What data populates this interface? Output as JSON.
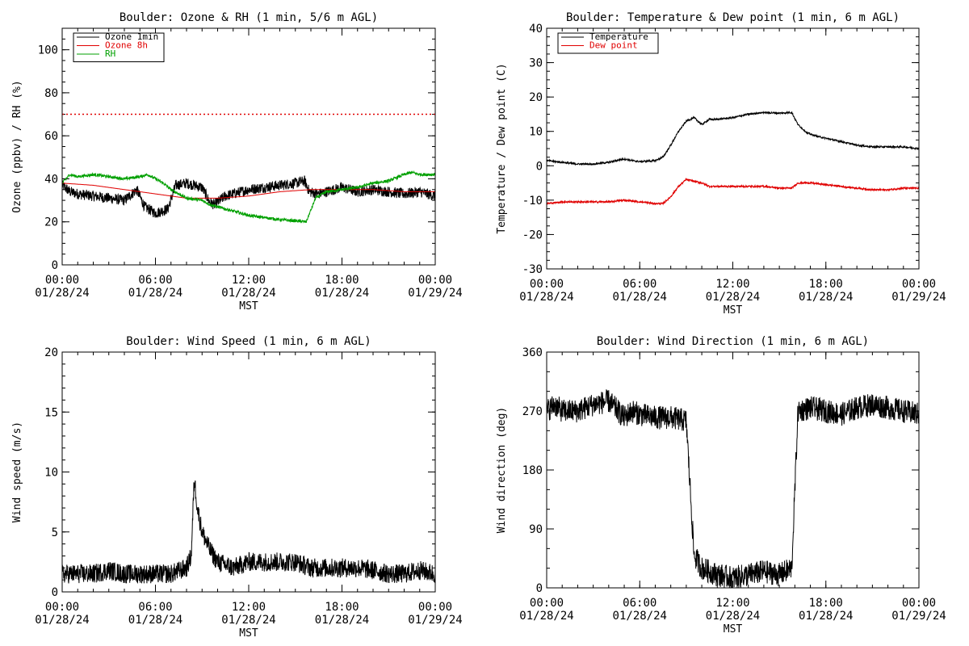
{
  "chart_data": [
    {
      "type": "line",
      "title": "Boulder: Ozone & RH (1 min, 5/6 m AGL)",
      "ylabel": "Ozone (ppbv) / RH (%)",
      "xlabel": "MST",
      "ylim": [
        0,
        110
      ],
      "yticks": [
        0,
        20,
        40,
        60,
        80,
        100
      ],
      "xticks": [
        {
          "h": 0,
          "time": "00:00",
          "date": "01/28/24"
        },
        {
          "h": 6,
          "time": "06:00",
          "date": "01/28/24"
        },
        {
          "h": 12,
          "time": "12:00",
          "date": "01/28/24"
        },
        {
          "h": 18,
          "time": "18:00",
          "date": "01/28/24"
        },
        {
          "h": 24,
          "time": "00:00",
          "date": "01/29/24"
        }
      ],
      "xlim_hours": [
        0,
        24
      ],
      "legend_position": "top-left",
      "reference_lines": [
        {
          "y": 70,
          "color": "#e00000",
          "style": "dotted"
        }
      ],
      "series": [
        {
          "name": "Ozone 1min",
          "color": "#000000",
          "noise": 2.5,
          "x": [
            0,
            0.5,
            1,
            2,
            3,
            4,
            4.8,
            5.3,
            6,
            6.8,
            7.3,
            8,
            9,
            9.5,
            9.8,
            10.5,
            11.5,
            12,
            13,
            14,
            15,
            15.6,
            15.9,
            16.5,
            17.5,
            18,
            19,
            20,
            21,
            22,
            23,
            24
          ],
          "y": [
            37,
            34,
            33,
            32,
            31,
            30,
            35,
            27,
            24,
            26,
            37,
            38,
            36,
            29,
            28,
            32,
            34,
            35,
            36,
            37,
            38,
            39,
            34,
            33,
            35,
            36,
            34,
            35,
            34,
            33,
            34,
            32
          ]
        },
        {
          "name": "Ozone 8h",
          "color": "#e00000",
          "noise": 0,
          "x": [
            0,
            2,
            4,
            6,
            8,
            10,
            12,
            14,
            16,
            18,
            20,
            22,
            24
          ],
          "y": [
            38,
            37,
            35,
            33,
            31,
            31,
            32,
            34,
            35,
            35,
            35,
            34,
            34
          ]
        },
        {
          "name": "RH",
          "color": "#00a000",
          "noise": 0.7,
          "x": [
            0,
            0.5,
            1,
            2,
            3,
            4,
            5,
            5.5,
            6,
            6.5,
            7,
            7.5,
            8,
            9,
            9.5,
            10,
            11,
            12,
            13,
            14,
            15,
            15.7,
            16.3,
            17,
            18,
            19,
            20,
            21,
            22,
            22.5,
            23,
            24
          ],
          "y": [
            38,
            42,
            41,
            42,
            41,
            40,
            41,
            42,
            40,
            38,
            35,
            33,
            31,
            30,
            28,
            27,
            25,
            23,
            22,
            21,
            20.5,
            20,
            31,
            34,
            35,
            36,
            38,
            39,
            42,
            43,
            42,
            42
          ]
        }
      ]
    },
    {
      "type": "line",
      "title": "Boulder: Temperature & Dew point (1 min, 6 m AGL)",
      "ylabel": "Temperature / Dew point (C)",
      "xlabel": "MST",
      "ylim": [
        -30,
        40
      ],
      "yticks": [
        -30,
        -20,
        -10,
        0,
        10,
        20,
        30,
        40
      ],
      "xticks": [
        {
          "h": 0,
          "time": "00:00",
          "date": "01/28/24"
        },
        {
          "h": 6,
          "time": "06:00",
          "date": "01/28/24"
        },
        {
          "h": 12,
          "time": "12:00",
          "date": "01/28/24"
        },
        {
          "h": 18,
          "time": "18:00",
          "date": "01/28/24"
        },
        {
          "h": 24,
          "time": "00:00",
          "date": "01/29/24"
        }
      ],
      "xlim_hours": [
        0,
        24
      ],
      "legend_position": "top-left",
      "series": [
        {
          "name": "Temperature",
          "color": "#000000",
          "noise": 0.25,
          "x": [
            0,
            1,
            2,
            3,
            4,
            5,
            5.5,
            6,
            7,
            7.5,
            8,
            8.5,
            9,
            9.5,
            10,
            10.5,
            11,
            12,
            13,
            14,
            15,
            15.8,
            16.2,
            16.8,
            17.5,
            18,
            19,
            20,
            21,
            22,
            23,
            24
          ],
          "y": [
            1.5,
            1,
            0.5,
            0.5,
            1,
            2,
            1.5,
            1.2,
            1.5,
            2.5,
            6,
            10,
            13,
            14,
            12,
            13.5,
            13.5,
            14,
            15,
            15.5,
            15.3,
            15.5,
            12,
            9.5,
            8.5,
            8,
            7,
            6,
            5.5,
            5.5,
            5.5,
            5
          ]
        },
        {
          "name": "Dew point",
          "color": "#e00000",
          "noise": 0.25,
          "x": [
            0,
            1,
            2,
            3,
            4,
            5,
            6,
            7,
            7.5,
            8,
            8.5,
            9,
            9.5,
            10,
            10.5,
            11,
            12,
            13,
            14,
            15,
            15.8,
            16.2,
            17,
            18,
            19,
            20,
            21,
            22,
            23,
            24
          ],
          "y": [
            -11,
            -10.5,
            -10.5,
            -10.5,
            -10.5,
            -10,
            -10.5,
            -11,
            -11,
            -9,
            -6,
            -4,
            -4.5,
            -5,
            -6,
            -6,
            -6,
            -6,
            -6,
            -6.5,
            -6.5,
            -5,
            -5,
            -5.5,
            -6,
            -6.5,
            -7,
            -7,
            -6.5,
            -6.5
          ]
        }
      ]
    },
    {
      "type": "line",
      "title": "Boulder: Wind Speed (1 min, 6 m AGL)",
      "ylabel": "Wind speed (m/s)",
      "xlabel": "MST",
      "ylim": [
        0,
        20
      ],
      "yticks": [
        0,
        5,
        10,
        15,
        20
      ],
      "xticks": [
        {
          "h": 0,
          "time": "00:00",
          "date": "01/28/24"
        },
        {
          "h": 6,
          "time": "06:00",
          "date": "01/28/24"
        },
        {
          "h": 12,
          "time": "12:00",
          "date": "01/28/24"
        },
        {
          "h": 18,
          "time": "18:00",
          "date": "01/28/24"
        },
        {
          "h": 24,
          "time": "00:00",
          "date": "01/29/24"
        }
      ],
      "xlim_hours": [
        0,
        24
      ],
      "series": [
        {
          "name": "",
          "color": "#000000",
          "noise": 0.8,
          "clamp_min": 0,
          "x": [
            0,
            1,
            2,
            3,
            4,
            5,
            6,
            7,
            8,
            8.3,
            8.5,
            8.7,
            9,
            9.5,
            10,
            11,
            12,
            13,
            14,
            15,
            16,
            17,
            18,
            19,
            20,
            21,
            22,
            23,
            24
          ],
          "y": [
            1.5,
            1.5,
            1.5,
            1.8,
            1.5,
            1.5,
            1.5,
            1.5,
            2,
            3,
            9.5,
            7,
            5,
            3.5,
            2.5,
            2,
            2.5,
            2.5,
            2.5,
            2.5,
            2,
            2,
            2,
            2,
            1.8,
            1.5,
            1.5,
            1.8,
            1.5
          ]
        }
      ]
    },
    {
      "type": "line",
      "title": "Boulder: Wind Direction (1 min, 6 m AGL)",
      "ylabel": "Wind direction (deg)",
      "xlabel": "MST",
      "ylim": [
        0,
        360
      ],
      "yticks": [
        0,
        90,
        180,
        270,
        360
      ],
      "xticks": [
        {
          "h": 0,
          "time": "00:00",
          "date": "01/28/24"
        },
        {
          "h": 6,
          "time": "06:00",
          "date": "01/28/24"
        },
        {
          "h": 12,
          "time": "12:00",
          "date": "01/28/24"
        },
        {
          "h": 18,
          "time": "18:00",
          "date": "01/28/24"
        },
        {
          "h": 24,
          "time": "00:00",
          "date": "01/29/24"
        }
      ],
      "xlim_hours": [
        0,
        24
      ],
      "series": [
        {
          "name": "",
          "color": "#000000",
          "noise": 18,
          "clamp_min": 0,
          "clamp_max": 360,
          "x": [
            0,
            0.5,
            1,
            2,
            3,
            4,
            5,
            5.5,
            6,
            7,
            8,
            9,
            9.5,
            10,
            11,
            12,
            13,
            14,
            15,
            15.8,
            16.2,
            17,
            18,
            19,
            20,
            21,
            22,
            23,
            24
          ],
          "y": [
            270,
            280,
            270,
            270,
            280,
            285,
            260,
            270,
            265,
            260,
            260,
            255,
            50,
            30,
            20,
            15,
            20,
            25,
            20,
            30,
            270,
            275,
            270,
            265,
            275,
            280,
            275,
            270,
            265
          ]
        }
      ]
    }
  ]
}
